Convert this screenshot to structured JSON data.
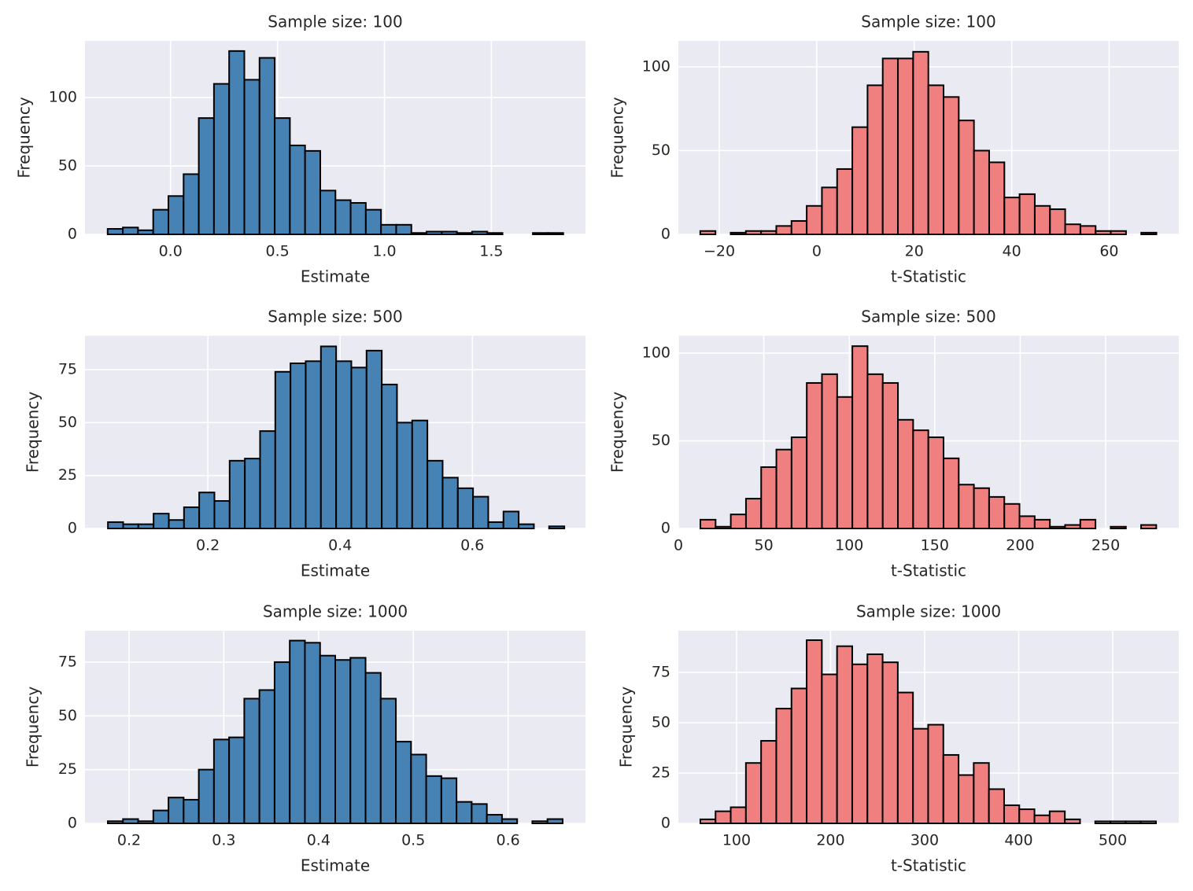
{
  "chart_data": [
    {
      "type": "histogram",
      "title": "Sample size: 100",
      "xlabel": "Estimate",
      "ylabel": "Frequency",
      "color": "#4682b4",
      "edgecolor": "#000000",
      "background": "#eaeaf2",
      "grid": true,
      "bins": [
        -0.294,
        -0.223,
        -0.152,
        -0.081,
        -0.01,
        0.061,
        0.132,
        0.203,
        0.274,
        0.345,
        0.416,
        0.487,
        0.558,
        0.629,
        0.7,
        0.771,
        0.842,
        0.913,
        0.984,
        1.055,
        1.126,
        1.197,
        1.268,
        1.339,
        1.41,
        1.481,
        1.552,
        1.623,
        1.694,
        1.765,
        1.836
      ],
      "values": [
        4,
        5,
        3,
        18,
        28,
        44,
        85,
        110,
        134,
        113,
        129,
        85,
        65,
        61,
        32,
        25,
        23,
        18,
        7,
        7,
        1,
        2,
        2,
        1,
        2,
        1,
        0,
        0,
        1,
        1
      ],
      "xlim": [
        -0.4,
        1.94
      ],
      "xticks": [
        {
          "value": 0,
          "label": "0.0"
        },
        0.5,
        {
          "value": 1,
          "label": "1.0"
        },
        1.5
      ],
      "ylim": [
        0,
        141.4
      ],
      "yticks": [
        0,
        50,
        100
      ]
    },
    {
      "type": "histogram",
      "title": "Sample size: 100",
      "xlabel": "t-Statistic",
      "ylabel": "Frequency",
      "color": "#f08080",
      "edgecolor": "#000000",
      "background": "#eaeaf2",
      "grid": true,
      "bins": [
        -23.9,
        -20.78,
        -17.66,
        -14.54,
        -11.42,
        -8.3,
        -5.18,
        -2.06,
        1.06,
        4.18,
        7.3,
        10.42,
        13.54,
        16.66,
        19.78,
        22.9,
        26.02,
        29.14,
        32.26,
        35.38,
        38.5,
        41.62,
        44.74,
        47.86,
        50.98,
        54.1,
        57.22,
        60.34,
        63.46,
        66.58,
        69.7
      ],
      "values": [
        2,
        0,
        1,
        2,
        2,
        5,
        8,
        17,
        28,
        39,
        64,
        89,
        105,
        105,
        109,
        89,
        82,
        68,
        50,
        43,
        22,
        24,
        17,
        15,
        6,
        5,
        2,
        2,
        0,
        1
      ],
      "xlim": [
        -28.4,
        74.3
      ],
      "xticks": [
        {
          "value": -20,
          "label": "−20"
        },
        0,
        20,
        40,
        60
      ],
      "ylim": [
        0,
        115.5
      ],
      "yticks": [
        0,
        50,
        100
      ]
    },
    {
      "type": "histogram",
      "title": "Sample size: 500",
      "xlabel": "Estimate",
      "ylabel": "Frequency",
      "color": "#4682b4",
      "edgecolor": "#000000",
      "background": "#eaeaf2",
      "grid": true,
      "bins": [
        0.049,
        0.072,
        0.095,
        0.118,
        0.141,
        0.164,
        0.187,
        0.21,
        0.233,
        0.256,
        0.279,
        0.302,
        0.325,
        0.348,
        0.371,
        0.394,
        0.417,
        0.44,
        0.463,
        0.486,
        0.509,
        0.532,
        0.555,
        0.578,
        0.601,
        0.624,
        0.647,
        0.67,
        0.693,
        0.716,
        0.739
      ],
      "values": [
        3,
        2,
        2,
        7,
        4,
        10,
        17,
        13,
        32,
        33,
        46,
        74,
        78,
        79,
        86,
        79,
        76,
        84,
        68,
        50,
        51,
        32,
        24,
        19,
        15,
        3,
        8,
        2,
        0,
        1
      ],
      "xlim": [
        0.0143,
        0.771
      ],
      "xticks": [
        0.2,
        0.4,
        0.6
      ],
      "ylim": [
        0,
        91
      ],
      "yticks": [
        0,
        25,
        50,
        75
      ]
    },
    {
      "type": "histogram",
      "title": "Sample size: 500",
      "xlabel": "t-Statistic",
      "ylabel": "Frequency",
      "color": "#f08080",
      "edgecolor": "#000000",
      "background": "#eaeaf2",
      "grid": true,
      "bins": [
        12.9,
        21.79,
        30.68,
        39.57,
        48.46,
        57.35,
        66.24,
        75.13,
        84.02,
        92.91,
        101.8,
        110.69,
        119.58,
        128.47,
        137.36,
        146.25,
        155.14,
        164.03,
        172.92,
        181.81,
        190.7,
        199.59,
        208.48,
        217.37,
        226.26,
        235.15,
        244.04,
        252.93,
        261.82,
        270.71,
        279.6
      ],
      "values": [
        5,
        1,
        8,
        17,
        35,
        45,
        52,
        83,
        88,
        75,
        104,
        88,
        83,
        62,
        56,
        52,
        40,
        25,
        23,
        18,
        14,
        7,
        5,
        1,
        2,
        5,
        0,
        1,
        0,
        2
      ],
      "xlim": [
        0,
        292.8
      ],
      "xticks": [
        0,
        50,
        100,
        150,
        200,
        250
      ],
      "ylim": [
        0,
        109.9
      ],
      "yticks": [
        0,
        50,
        100
      ]
    },
    {
      "type": "histogram",
      "title": "Sample size: 1000",
      "xlabel": "Estimate",
      "ylabel": "Frequency",
      "color": "#4682b4",
      "edgecolor": "#000000",
      "background": "#eaeaf2",
      "grid": true,
      "bins": [
        0.1776,
        0.1936,
        0.2096,
        0.2256,
        0.2416,
        0.2576,
        0.2736,
        0.2896,
        0.3056,
        0.3216,
        0.3376,
        0.3536,
        0.3696,
        0.3856,
        0.4016,
        0.4176,
        0.4336,
        0.4496,
        0.4656,
        0.4816,
        0.4976,
        0.5136,
        0.5296,
        0.5456,
        0.5616,
        0.5776,
        0.5936,
        0.6096,
        0.6256,
        0.6416,
        0.6576
      ],
      "values": [
        1,
        2,
        1,
        6,
        12,
        11,
        25,
        39,
        40,
        58,
        62,
        75,
        85,
        84,
        78,
        76,
        77,
        70,
        58,
        38,
        32,
        22,
        21,
        10,
        9,
        4,
        2,
        0,
        1,
        2
      ],
      "xlim": [
        0.1535,
        0.6817
      ],
      "xticks": [
        0.2,
        0.3,
        0.4,
        0.5,
        0.6
      ],
      "ylim": [
        0,
        89.6
      ],
      "yticks": [
        0,
        25,
        50,
        75
      ]
    },
    {
      "type": "histogram",
      "title": "Sample size: 1000",
      "xlabel": "t-Statistic",
      "ylabel": "Frequency",
      "color": "#f08080",
      "edgecolor": "#000000",
      "background": "#eaeaf2",
      "grid": true,
      "bins": [
        61.5,
        77.65,
        93.8,
        109.95,
        126.1,
        142.25,
        158.4,
        174.55,
        190.7,
        206.85,
        223,
        239.15,
        255.3,
        271.45,
        287.6,
        303.75,
        319.9,
        336.05,
        352.2,
        368.35,
        384.5,
        400.65,
        416.8,
        432.95,
        449.1,
        465.25,
        481.4,
        497.55,
        513.7,
        529.85,
        546
      ],
      "values": [
        2,
        6,
        8,
        30,
        41,
        57,
        67,
        91,
        74,
        88,
        79,
        84,
        80,
        65,
        47,
        49,
        34,
        24,
        30,
        17,
        9,
        7,
        4,
        6,
        2,
        0,
        1,
        1,
        1,
        1
      ],
      "xlim": [
        38.1,
        570.3
      ],
      "xticks": [
        100,
        200,
        300,
        400,
        500
      ],
      "ylim": [
        0,
        95.7
      ],
      "yticks": [
        0,
        25,
        50,
        75
      ]
    }
  ]
}
